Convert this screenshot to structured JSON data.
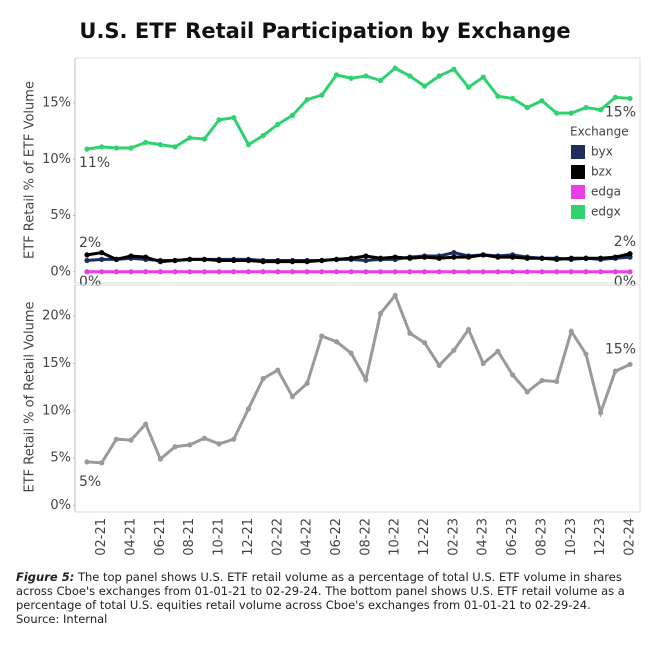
{
  "chart_data": [
    {
      "type": "line",
      "title": "U.S. ETF Retail Participation by Exchange",
      "ylabel": "ETF Retail % of ETF Volume",
      "ylim": [
        -1,
        19
      ],
      "yticks": [
        {
          "value": 0,
          "label": "0%"
        },
        {
          "value": 5,
          "label": "5%"
        },
        {
          "value": 10,
          "label": "10%"
        },
        {
          "value": 15,
          "label": "15%"
        }
      ],
      "legend_title": "Exchange",
      "legend": "right",
      "series": [
        {
          "name": "byx",
          "color": "#1f2d5a",
          "values": [
            1.0,
            1.1,
            1.1,
            1.2,
            1.1,
            1.0,
            1.0,
            1.1,
            1.1,
            1.1,
            1.1,
            1.1,
            1.0,
            1.0,
            1.0,
            1.0,
            1.0,
            1.1,
            1.1,
            1.0,
            1.1,
            1.1,
            1.3,
            1.4,
            1.4,
            1.7,
            1.4,
            1.5,
            1.4,
            1.5,
            1.3,
            1.2,
            1.2,
            1.1,
            1.2,
            1.1,
            1.2,
            1.3
          ]
        },
        {
          "name": "bzx",
          "color": "#000000",
          "values": [
            1.5,
            1.7,
            1.1,
            1.4,
            1.3,
            0.9,
            1.0,
            1.1,
            1.1,
            1.0,
            1.0,
            1.0,
            0.9,
            0.9,
            0.9,
            0.9,
            1.0,
            1.1,
            1.2,
            1.4,
            1.2,
            1.3,
            1.2,
            1.3,
            1.2,
            1.3,
            1.3,
            1.5,
            1.3,
            1.3,
            1.2,
            1.2,
            1.1,
            1.2,
            1.2,
            1.2,
            1.3,
            1.6
          ],
          "value_labels": [
            "2%",
            null,
            null,
            null,
            null,
            null,
            null,
            null,
            null,
            null,
            null,
            null,
            null,
            null,
            null,
            null,
            null,
            null,
            null,
            null,
            null,
            null,
            null,
            null,
            null,
            null,
            null,
            null,
            null,
            null,
            null,
            null,
            null,
            null,
            null,
            null,
            null,
            "2%"
          ]
        },
        {
          "name": "edga",
          "color": "#e83ee8",
          "values": [
            0.0,
            0.0,
            0.0,
            0.0,
            0.0,
            0.0,
            0.0,
            0.0,
            0.0,
            0.0,
            0.0,
            0.0,
            0.0,
            0.0,
            0.0,
            0.0,
            0.0,
            0.0,
            0.0,
            0.0,
            0.0,
            0.0,
            0.0,
            0.0,
            0.0,
            0.0,
            0.0,
            0.0,
            0.0,
            0.0,
            0.0,
            0.0,
            0.0,
            0.0,
            0.0,
            0.0,
            0.0,
            0.0
          ],
          "value_labels": [
            "0%",
            null,
            null,
            null,
            null,
            null,
            null,
            null,
            null,
            null,
            null,
            null,
            null,
            null,
            null,
            null,
            null,
            null,
            null,
            null,
            null,
            null,
            null,
            null,
            null,
            null,
            null,
            null,
            null,
            null,
            null,
            null,
            null,
            null,
            null,
            null,
            null,
            "0%"
          ]
        },
        {
          "name": "edgx",
          "color": "#2fd26f",
          "values": [
            10.9,
            11.1,
            11.0,
            11.0,
            11.5,
            11.3,
            11.1,
            11.9,
            11.8,
            13.5,
            13.7,
            11.3,
            12.1,
            13.1,
            13.9,
            15.3,
            15.7,
            17.5,
            17.2,
            17.4,
            17.0,
            18.1,
            17.4,
            16.5,
            17.4,
            18.0,
            16.4,
            17.3,
            15.6,
            15.4,
            14.6,
            15.2,
            14.1,
            14.1,
            14.6,
            14.4,
            15.5,
            15.4
          ],
          "value_labels": [
            "11%",
            null,
            null,
            null,
            null,
            null,
            null,
            null,
            null,
            null,
            null,
            null,
            null,
            null,
            null,
            null,
            null,
            null,
            null,
            null,
            null,
            null,
            null,
            null,
            null,
            null,
            null,
            null,
            null,
            null,
            null,
            null,
            null,
            null,
            null,
            null,
            null,
            "15%"
          ]
        }
      ]
    },
    {
      "type": "line",
      "ylabel": "ETF Retail % of Retail Volume",
      "ylim": [
        -0.7,
        23.3
      ],
      "yticks": [
        {
          "value": 0,
          "label": "0%"
        },
        {
          "value": 5,
          "label": "5%"
        },
        {
          "value": 10,
          "label": "10%"
        },
        {
          "value": 15,
          "label": "15%"
        },
        {
          "value": 20,
          "label": "20%"
        }
      ],
      "categories": [
        null,
        "02-21",
        null,
        "04-21",
        null,
        "06-21",
        null,
        "08-21",
        null,
        "10-21",
        null,
        "12-21",
        null,
        "02-22",
        null,
        "04-22",
        null,
        "06-22",
        null,
        "08-22",
        null,
        "10-22",
        null,
        "12-22",
        null,
        "02-23",
        null,
        "04-23",
        null,
        "06-23",
        null,
        "08-23",
        null,
        "10-23",
        null,
        "12-23",
        null,
        "02-24"
      ],
      "series": [
        {
          "color": "#9a9a9a",
          "values": [
            4.6,
            4.5,
            7.0,
            6.9,
            8.6,
            4.9,
            6.2,
            6.4,
            7.1,
            6.5,
            7.0,
            10.2,
            13.4,
            14.3,
            11.5,
            12.9,
            17.9,
            17.3,
            16.1,
            13.3,
            20.3,
            22.2,
            18.2,
            17.2,
            14.8,
            16.4,
            18.6,
            15.0,
            16.3,
            13.8,
            12.0,
            13.2,
            13.1,
            18.4,
            16.0,
            9.8,
            14.2,
            14.9
          ],
          "value_labels": [
            "5%",
            null,
            null,
            null,
            null,
            null,
            null,
            null,
            null,
            null,
            null,
            null,
            null,
            null,
            null,
            null,
            null,
            null,
            null,
            null,
            null,
            null,
            null,
            null,
            null,
            null,
            null,
            null,
            null,
            null,
            null,
            null,
            null,
            null,
            null,
            null,
            null,
            "15%"
          ]
        }
      ]
    }
  ],
  "caption": {
    "label": "Figure 5:",
    "text": "The top panel shows U.S. ETF retail volume as a percentage of total U.S. ETF volume in shares across Cboe's exchanges from 01-01-21 to 02-29-24. The bottom panel shows U.S. ETF retail volume as a percentage of total U.S. equities retail volume across Cboe's exchanges from 01-01-21 to 02-29-24.",
    "source": "Source: Internal"
  }
}
